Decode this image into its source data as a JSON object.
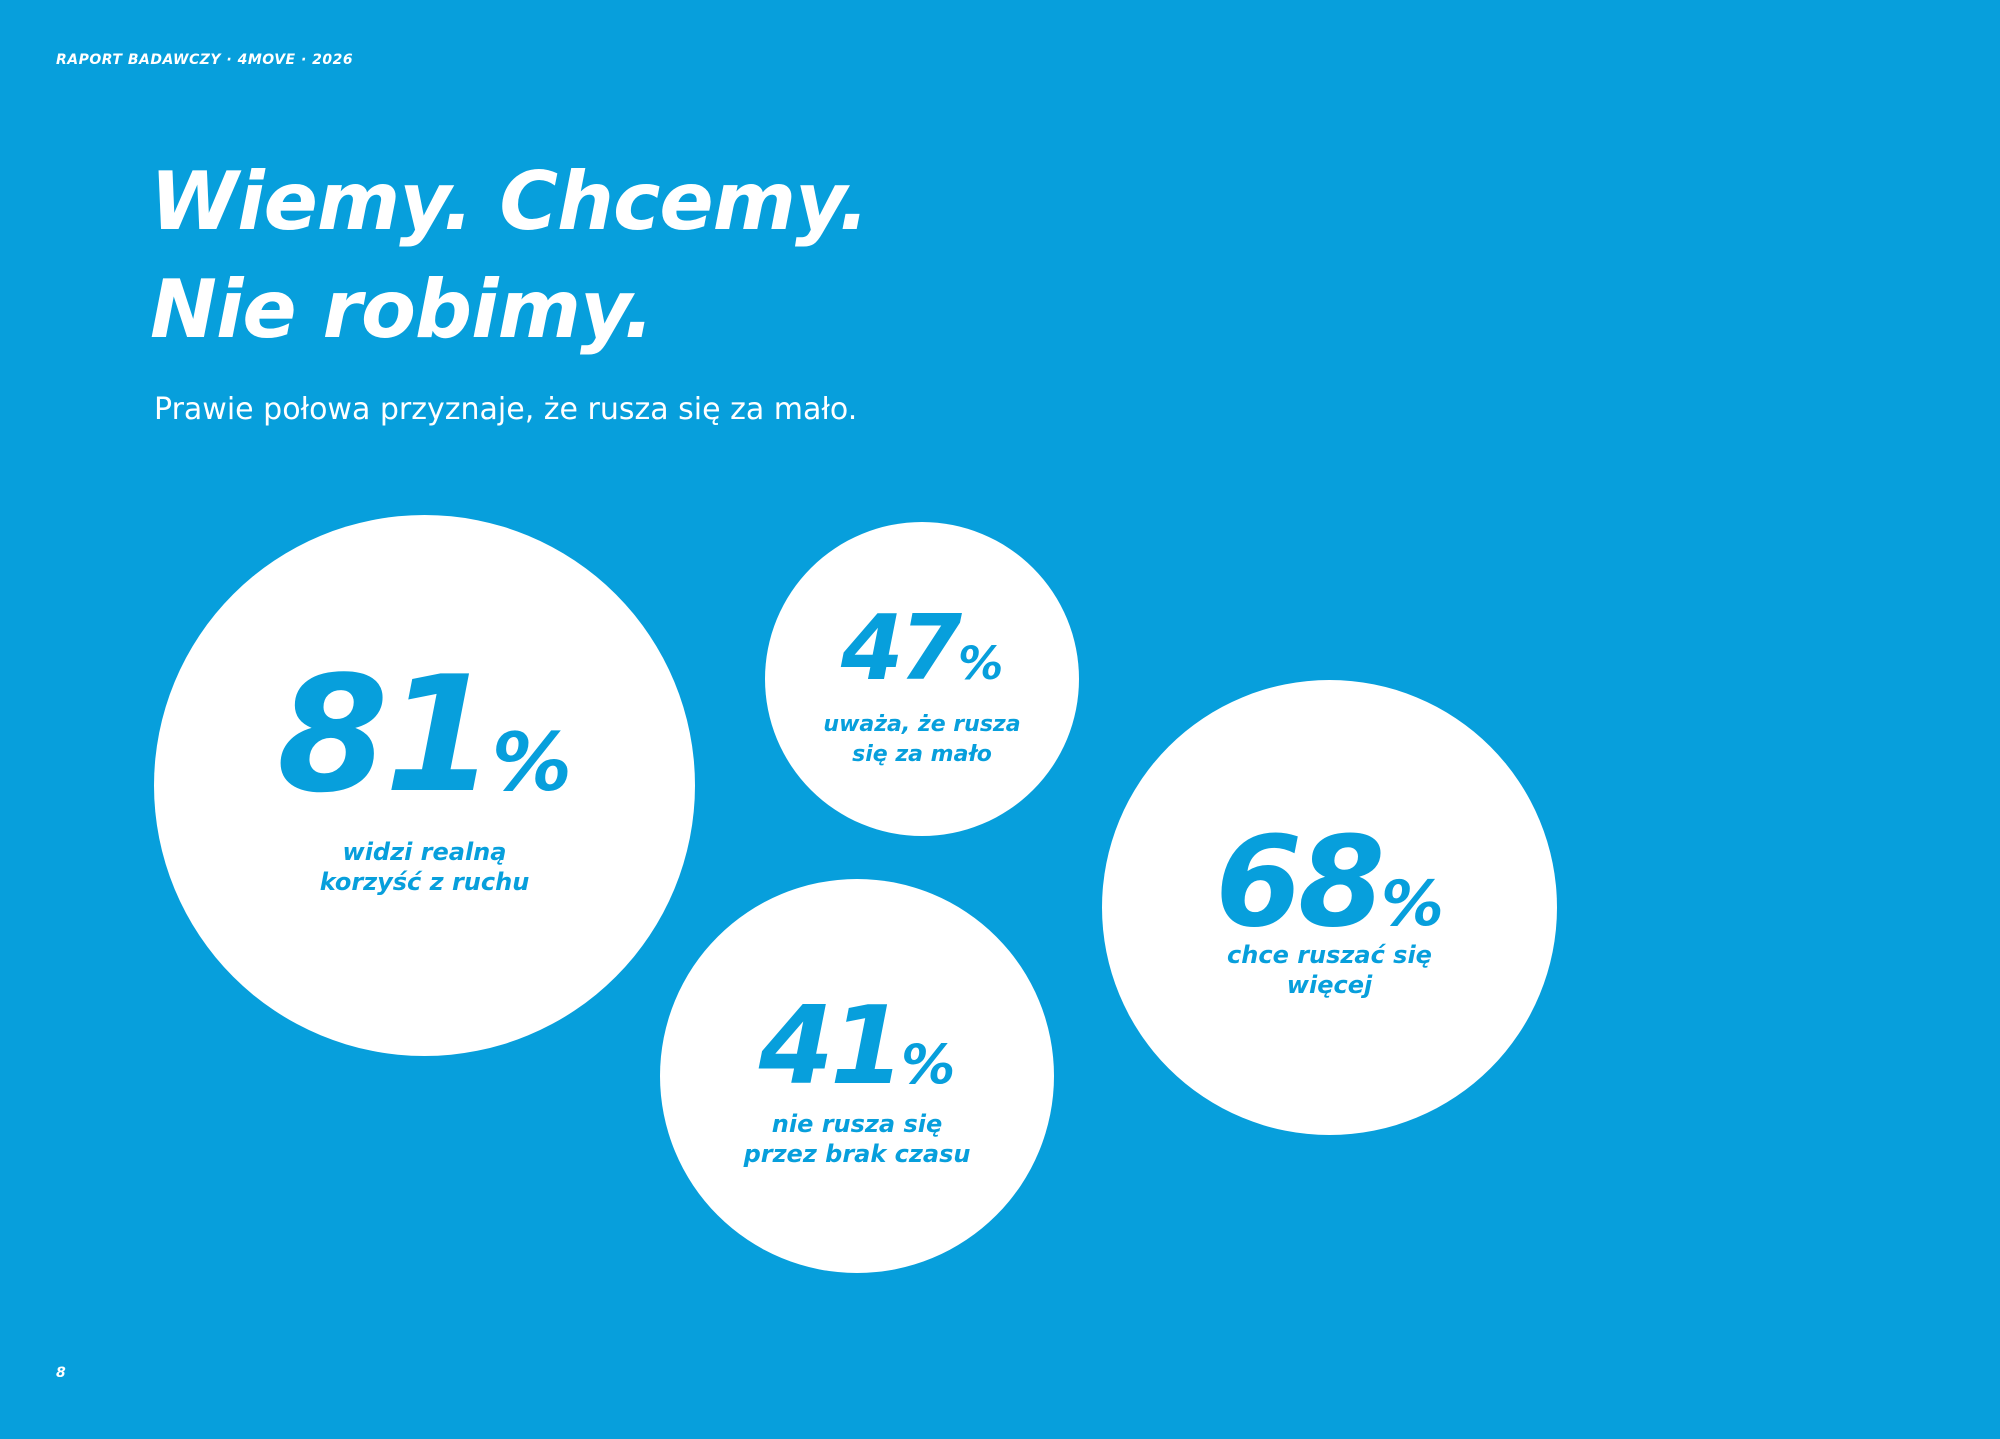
{
  "header": {
    "label": "RAPORT BADAWCZY · 4MOVE · 2026"
  },
  "title": {
    "line1": "Wiemy. Chcemy.",
    "line2": "Nie robimy."
  },
  "subtitle": "Prawie połowa przyznaje, że rusza się za mało.",
  "stats": [
    {
      "value": "81",
      "unit": "%",
      "line1": "widzi realną",
      "line2": "korzyść z ruchu"
    },
    {
      "value": "47",
      "unit": "%",
      "line1": "uważa, że rusza",
      "line2": "się za mało"
    },
    {
      "value": "68",
      "unit": "%",
      "line1": "chce ruszać się",
      "line2": "więcej"
    },
    {
      "value": "41",
      "unit": "%",
      "line1": "nie rusza się",
      "line2": "przez brak czasu"
    }
  ],
  "page_number": "8",
  "colors": {
    "background": "#079fdc",
    "circle": "#ffffff",
    "accent_text": "#079fdc"
  }
}
